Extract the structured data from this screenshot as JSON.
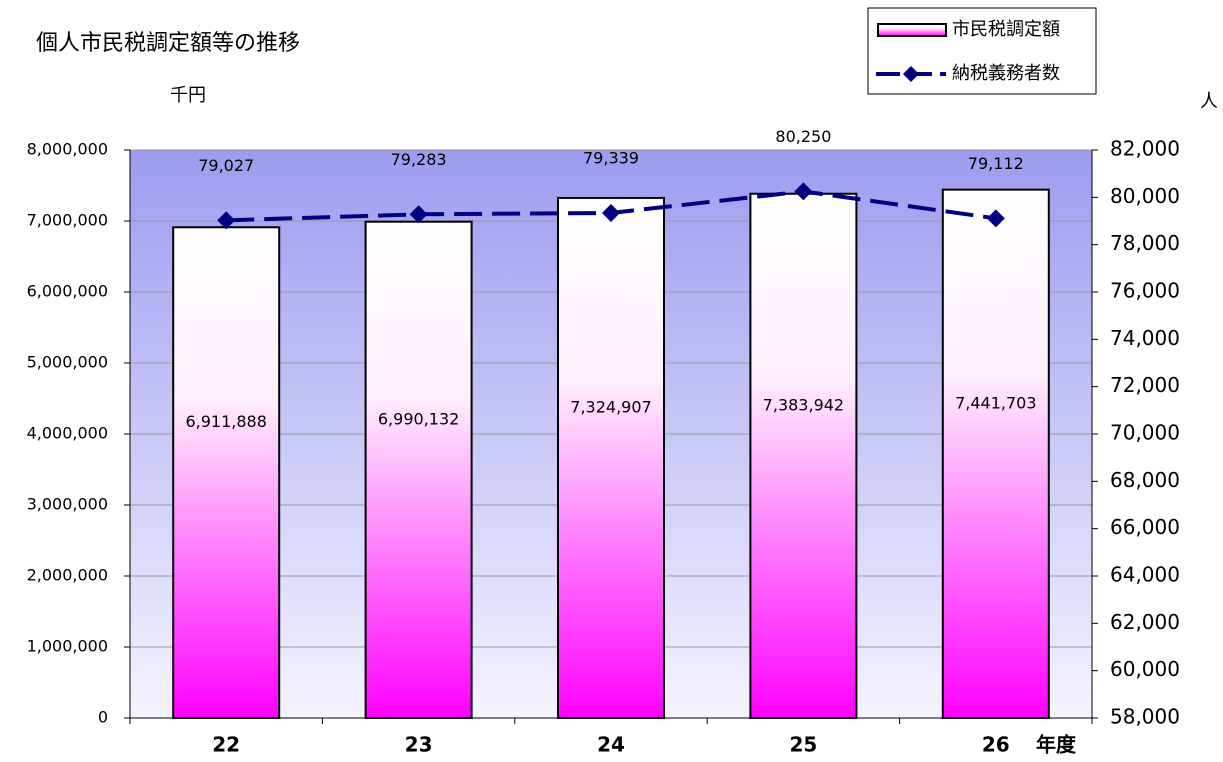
{
  "chart_data": {
    "type": "bar",
    "title": "個人市民税調定額等の推移",
    "y_label": "千円",
    "y2_label": "人",
    "x_label": "年度",
    "categories": [
      "22",
      "23",
      "24",
      "25",
      "26"
    ],
    "series": [
      {
        "name": "市民税調定額",
        "type": "bar",
        "color": "#ff00ff",
        "values": [
          6911888,
          6990132,
          7324907,
          7383942,
          7441703
        ],
        "value_labels": [
          "6,911,888",
          "6,990,132",
          "7,324,907",
          "7,383,942",
          "7,441,703"
        ]
      },
      {
        "name": "納税義務者数",
        "type": "line",
        "axis": "y2",
        "color": "#000080",
        "values": [
          79027,
          79283,
          79339,
          80250,
          79112
        ],
        "value_labels": [
          "79,027",
          "79,283",
          "79,339",
          "80,250",
          "79,112"
        ]
      }
    ],
    "ylim": [
      0,
      8000000
    ],
    "yticks": [
      0,
      {
        "value": 1000000,
        "label": "1,000,000"
      },
      {
        "value": 2000000,
        "label": "2,000,000"
      },
      {
        "value": 3000000,
        "label": "3,000,000"
      },
      {
        "value": 4000000,
        "label": "4,000,000"
      },
      {
        "value": 5000000,
        "label": "5,000,000"
      },
      {
        "value": 6000000,
        "label": "6,000,000"
      },
      {
        "value": 7000000,
        "label": "7,000,000"
      },
      {
        "value": 8000000,
        "label": "8,000,000"
      }
    ],
    "y2lim": [
      58000,
      82000
    ],
    "y2ticks": [
      {
        "value": 58000,
        "label": "58,000"
      },
      {
        "value": 60000,
        "label": "60,000"
      },
      {
        "value": 62000,
        "label": "62,000"
      },
      {
        "value": 64000,
        "label": "64,000"
      },
      {
        "value": 66000,
        "label": "66,000"
      },
      {
        "value": 68000,
        "label": "68,000"
      },
      {
        "value": 70000,
        "label": "70,000"
      },
      {
        "value": 72000,
        "label": "72,000"
      },
      {
        "value": 74000,
        "label": "74,000"
      },
      {
        "value": 76000,
        "label": "76,000"
      },
      {
        "value": 78000,
        "label": "78,000"
      },
      {
        "value": 80000,
        "label": "80,000"
      },
      {
        "value": 82000,
        "label": "82,000"
      }
    ],
    "grid": true,
    "legend": "top-right"
  }
}
